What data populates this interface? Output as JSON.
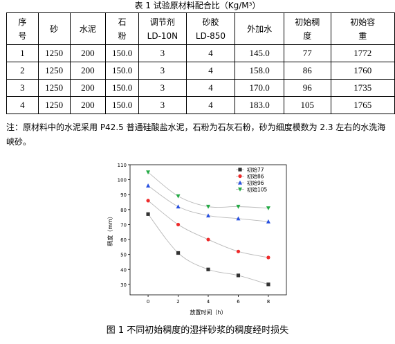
{
  "table": {
    "title": "表 1 试验原材料配合比（Kg/M³）",
    "headers": [
      [
        "序",
        "号"
      ],
      [
        "砂"
      ],
      [
        "水泥"
      ],
      [
        "石",
        "粉"
      ],
      [
        "调节剂",
        "LD-10N"
      ],
      [
        "砂胶",
        "LD-850"
      ],
      [
        "外加水"
      ],
      [
        "初始稠",
        "度"
      ],
      [
        "初始容",
        "重"
      ]
    ],
    "rows": [
      [
        "1",
        "1250",
        "200",
        "150.0",
        "3",
        "4",
        "145.0",
        "77",
        "1772"
      ],
      [
        "2",
        "1250",
        "200",
        "150.0",
        "3",
        "4",
        "158.0",
        "86",
        "1760"
      ],
      [
        "3",
        "1250",
        "200",
        "150.0",
        "3",
        "4",
        "170.0",
        "96",
        "1735"
      ],
      [
        "4",
        "1250",
        "200",
        "150.0",
        "3",
        "4",
        "183.0",
        "105",
        "1765"
      ]
    ]
  },
  "note": "注：原材料中的水泥采用 P42.5 普通硅酸盐水泥，石粉为石灰石粉，砂为细度模数为 2.3 左右的水洗海峡砂。",
  "figure_caption": "图 1 不同初始稠度的湿拌砂浆的稠度经时损失",
  "chart_data": {
    "type": "line",
    "xlabel": "放置时间（h）",
    "ylabel": "稠度（mm）",
    "x": [
      0,
      2,
      4,
      6,
      8
    ],
    "x_ticks": [
      0,
      2,
      4,
      6,
      8
    ],
    "y_ticks": [
      30,
      40,
      50,
      60,
      70,
      80,
      90,
      100,
      110
    ],
    "xlim": [
      -1.2,
      9.2
    ],
    "ylim": [
      23,
      110
    ],
    "grid": false,
    "legend_position": "top-right",
    "series": [
      {
        "name": "初始77",
        "values": [
          77,
          51,
          40,
          36,
          30
        ],
        "color": "#333333",
        "marker": "square"
      },
      {
        "name": "初始86",
        "values": [
          86,
          70,
          60,
          52,
          48
        ],
        "color": "#ee2a2a",
        "marker": "circle"
      },
      {
        "name": "初始96",
        "values": [
          96,
          82,
          76,
          74,
          72
        ],
        "color": "#2850e0",
        "marker": "triangle-up"
      },
      {
        "name": "初始105",
        "values": [
          105,
          89,
          82,
          82,
          81
        ],
        "color": "#22aa44",
        "marker": "triangle-down"
      }
    ]
  }
}
